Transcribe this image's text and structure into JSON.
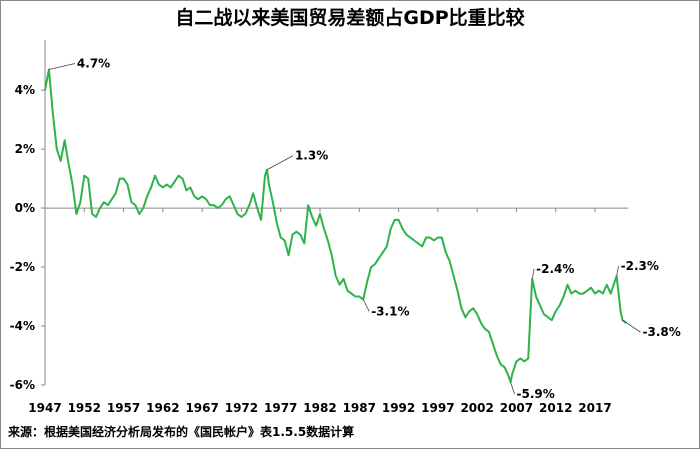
{
  "chart_data": {
    "type": "line",
    "title": "自二战以来美国贸易差额占GDP比重比较",
    "source": "来源：根据美国经济分析局发布的《国民帐户》表1.5.5数据计算",
    "x": [
      1947,
      1947.5,
      1948,
      1948.5,
      1949,
      1949.5,
      1950,
      1950.5,
      1951,
      1951.5,
      1952,
      1952.5,
      1953,
      1953.5,
      1954,
      1954.5,
      1955,
      1955.5,
      1956,
      1956.5,
      1957,
      1957.5,
      1958,
      1958.5,
      1959,
      1959.5,
      1960,
      1960.5,
      1961,
      1961.5,
      1962,
      1962.5,
      1963,
      1963.5,
      1964,
      1964.5,
      1965,
      1965.5,
      1966,
      1966.5,
      1967,
      1967.5,
      1968,
      1968.5,
      1969,
      1969.5,
      1970,
      1970.5,
      1971,
      1971.5,
      1972,
      1972.5,
      1973,
      1973.5,
      1974,
      1974.5,
      1975,
      1975.25,
      1975.5,
      1976,
      1976.5,
      1977,
      1977.5,
      1978,
      1978.5,
      1979,
      1979.5,
      1980,
      1980.5,
      1981,
      1981.5,
      1982,
      1982.5,
      1983,
      1983.5,
      1984,
      1984.5,
      1985,
      1985.5,
      1986,
      1986.5,
      1987,
      1987.5,
      1988,
      1988.5,
      1989,
      1989.5,
      1990,
      1990.5,
      1991,
      1991.5,
      1992,
      1992.5,
      1993,
      1993.5,
      1994,
      1994.5,
      1995,
      1995.5,
      1996,
      1996.5,
      1997,
      1997.5,
      1998,
      1998.5,
      1999,
      1999.5,
      2000,
      2000.5,
      2001,
      2001.5,
      2002,
      2002.5,
      2003,
      2003.5,
      2004,
      2004.5,
      2005,
      2005.5,
      2006,
      2006.25,
      2006.5,
      2007,
      2007.5,
      2008,
      2008.5,
      2009,
      2009.5,
      2010,
      2010.5,
      2011,
      2011.5,
      2012,
      2012.5,
      2013,
      2013.5,
      2014,
      2014.5,
      2015,
      2015.5,
      2016,
      2016.5,
      2017,
      2017.5,
      2018,
      2018.5,
      2019,
      2019.75,
      2020.25,
      2020.5,
      2021
    ],
    "series": [
      {
        "name": "贸易差额占GDP比重",
        "color": "#2eb34a",
        "values": [
          4.0,
          4.7,
          3.2,
          2.0,
          1.6,
          2.3,
          1.5,
          0.8,
          -0.2,
          0.2,
          1.1,
          1.0,
          -0.2,
          -0.3,
          0.0,
          0.2,
          0.1,
          0.3,
          0.5,
          1.0,
          1.0,
          0.8,
          0.2,
          0.1,
          -0.2,
          0.0,
          0.4,
          0.7,
          1.1,
          0.8,
          0.7,
          0.8,
          0.7,
          0.9,
          1.1,
          1.0,
          0.6,
          0.7,
          0.4,
          0.3,
          0.4,
          0.3,
          0.1,
          0.1,
          0.0,
          0.1,
          0.3,
          0.4,
          0.1,
          -0.2,
          -0.3,
          -0.2,
          0.1,
          0.5,
          0.0,
          -0.4,
          1.1,
          1.3,
          0.8,
          0.2,
          -0.5,
          -1.0,
          -1.1,
          -1.6,
          -0.9,
          -0.8,
          -0.9,
          -1.2,
          0.1,
          -0.3,
          -0.6,
          -0.2,
          -0.7,
          -1.1,
          -1.6,
          -2.3,
          -2.6,
          -2.4,
          -2.8,
          -2.9,
          -3.0,
          -3.0,
          -3.1,
          -2.5,
          -2.0,
          -1.9,
          -1.7,
          -1.5,
          -1.3,
          -0.7,
          -0.4,
          -0.4,
          -0.7,
          -0.9,
          -1.0,
          -1.1,
          -1.2,
          -1.3,
          -1.0,
          -1.0,
          -1.1,
          -1.0,
          -1.0,
          -1.5,
          -1.8,
          -2.3,
          -2.8,
          -3.4,
          -3.7,
          -3.5,
          -3.4,
          -3.6,
          -3.9,
          -4.1,
          -4.2,
          -4.6,
          -5.0,
          -5.3,
          -5.4,
          -5.7,
          -5.9,
          -5.6,
          -5.2,
          -5.1,
          -5.2,
          -5.1,
          -2.4,
          -3.0,
          -3.3,
          -3.6,
          -3.7,
          -3.8,
          -3.5,
          -3.3,
          -3.0,
          -2.6,
          -2.9,
          -2.8,
          -2.9,
          -2.9,
          -2.8,
          -2.7,
          -2.9,
          -2.8,
          -2.9,
          -2.6,
          -2.9,
          -2.3,
          -3.5,
          -3.8,
          -3.9
        ]
      }
    ],
    "annotations": [
      {
        "text": "4.7%",
        "x": 1947.5,
        "y": 4.7
      },
      {
        "text": "1.3%",
        "x": 1975.25,
        "y": 1.3
      },
      {
        "text": "-3.1%",
        "x": 1987.5,
        "y": -3.1
      },
      {
        "text": "-5.9%",
        "x": 2006.25,
        "y": -5.9
      },
      {
        "text": "-2.4%",
        "x": 2009,
        "y": -2.4
      },
      {
        "text": "-2.3%",
        "x": 2019.75,
        "y": -2.3
      },
      {
        "text": "-3.8%",
        "x": 2020.5,
        "y": -3.8
      }
    ],
    "xlim": [
      1947,
      2021.25
    ],
    "xticks": [
      1947,
      1952,
      1957,
      1962,
      1967,
      1972,
      1977,
      1982,
      1987,
      1992,
      1997,
      2002,
      2007,
      2012,
      2017
    ],
    "ylim": [
      -6,
      5.7
    ],
    "yticks": [
      {
        "value": 4,
        "label": "4%"
      },
      {
        "value": 2,
        "label": "2%"
      },
      {
        "value": 0,
        "label": "0%"
      },
      {
        "value": -2,
        "label": "-2%"
      },
      {
        "value": -4,
        "label": "-4%"
      },
      {
        "value": -6,
        "label": "-6%"
      }
    ]
  }
}
